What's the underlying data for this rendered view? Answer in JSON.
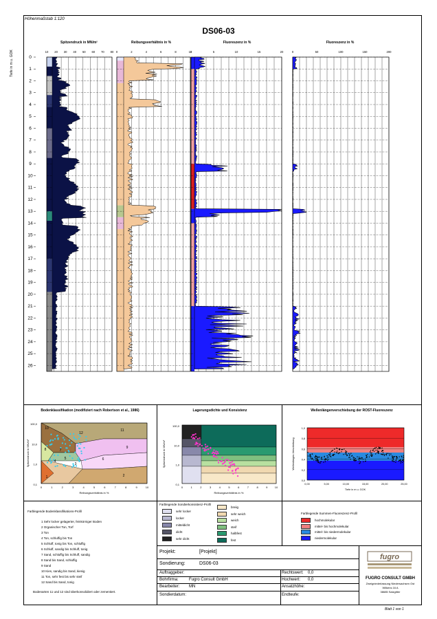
{
  "header": {
    "scale": "Höhenmaßstab 1:120",
    "title": "DS06-03"
  },
  "columns": {
    "tip": {
      "title": "Spitzendruck in MN/m²",
      "ticks": [
        "10",
        "20",
        "30",
        "40",
        "50",
        "60",
        "70",
        "80"
      ]
    },
    "friction": {
      "title": "Reibungsverhältnis in %",
      "ticks": [
        "0",
        "2",
        "4",
        "6",
        "8",
        "10"
      ]
    },
    "fluor1": {
      "title": "Fluoreszenz in %",
      "ticks": [
        "0",
        "5",
        "10",
        "15",
        "20"
      ]
    },
    "fluor2": {
      "title": "Fluoreszenz in %",
      "ticks": [
        "0",
        "50",
        "100",
        "150",
        "200"
      ]
    }
  },
  "depth_axis": {
    "label": "Tiefe in m u. GOK",
    "ticks": [
      "0",
      "1",
      "2",
      "3",
      "4",
      "5",
      "6",
      "7",
      "8",
      "9",
      "10",
      "11",
      "12",
      "13",
      "14",
      "15",
      "16",
      "17",
      "18",
      "19",
      "20",
      "21",
      "22",
      "23",
      "24",
      "25",
      "26"
    ]
  },
  "panels": {
    "robertson": {
      "title": "Bodenklassifikation (modifiziert nach Robertson et al., 1986)",
      "xlabel": "Reibungsverhältnis in %",
      "ylabel": "Spitzendruck in MN/m²",
      "y_ticks": [
        "100,0",
        "10,0",
        "1,0",
        "0,1"
      ],
      "x_ticks": [
        "0",
        "1",
        "2",
        "3",
        "4",
        "5",
        "6",
        "7",
        "8",
        "9",
        "10"
      ],
      "zones": [
        "1",
        "2",
        "3",
        "4",
        "5",
        "6",
        "7",
        "8",
        "9",
        "10",
        "11",
        "12"
      ]
    },
    "lagerung": {
      "title": "Lagerungsdichte und Konsistenz",
      "xlabel": "Reibungsverhältnis in %",
      "ylabel": "Spitzendruck in MN/m²",
      "y_ticks": [
        "100,0",
        "10,0",
        "1,0",
        "0,1"
      ],
      "x_ticks": [
        "0",
        "1",
        "2",
        "3",
        "4",
        "5",
        "6",
        "7",
        "8",
        "9",
        "10"
      ]
    },
    "rost": {
      "title": "Wellenlängenverschiebung der ROST-Fluoreszenz",
      "xlabel": "Tiefe in m u. GOK",
      "ylabel": "Wellenlängen-Verschiebung",
      "x_ticks": [
        "0,00",
        "5,00",
        "10,00",
        "15,00",
        "20,00",
        "25,00"
      ],
      "y_ticks": [
        "1,0",
        "0,8",
        "0,6",
        "0,4",
        "0,2",
        "0,0"
      ]
    }
  },
  "legends": {
    "robertson_title": "Farblegende Bodenklassifikations-Profil",
    "robertson_items": [
      "1  Sehr locker gelagerter, feinkörniger Boden",
      "2  Organischer Ton, Torf",
      "3  Ton",
      "4  Ton, schluffig bis Ton",
      "5  Schluff, tonig bis Ton, schluffig",
      "6  Schluff, sandig bis Schluff, tonig",
      "7  Sand, schluffig bis Schluff, sandig",
      "8  Sand bis Sand, schluffig",
      "9  Sand",
      "10  Kies, sandig bis Sand, kiesig",
      "11  Ton, sehr fest bis sehr steif",
      "12  Sand bis Sand, tonig"
    ],
    "robertson_note": "Bodenarten 11 und 12 sind überkonsolidiert oder zementiert.",
    "lagerung_title": "Farblegende Sondierkonsistenz-Profil",
    "lagerung_left": [
      "sehr locker",
      "locker",
      "mitteldicht",
      "dicht",
      "sehr dicht"
    ],
    "lagerung_right": [
      "breiig",
      "sehr weich",
      "weich",
      "steif",
      "halbfest",
      "fest"
    ],
    "rost_title": "Farblegende Summen-Fluoreszenz-Profil",
    "rost_items": [
      "hochmolekular",
      "mittel- bis hochmolekular",
      "mittel- bis niedermolekular",
      "niedermolekular"
    ]
  },
  "form": {
    "projekt_label": "Projekt:",
    "projekt_value": "[Projekt]",
    "sondierung_label": "Sondierung:",
    "sondierung_value": "DS06-03",
    "auftraggeber_label": "Auftraggeber:",
    "bohrfirma_label": "Bohrfirma:",
    "bohrfirma_value": "Fugro Consult GmbH",
    "bearbeiter_label": "Bearbeiter:",
    "bearbeiter_value": "MN",
    "sondierdatum_label": "Sondierdatum:",
    "rechtswert_label": "Rechtswert:",
    "rechtswert_value": "0,0",
    "hochwert_label": "Hochwert:",
    "hochwert_value": "0,0",
    "ansatzhoehe_label": "Ansatzhöhe:",
    "endteufe_label": "Endteufe:"
  },
  "company": {
    "logo": "fugro",
    "name": "FUGRO CONSULT GMBH",
    "line1": "Zweigniederlassung Niedersachsen Ost",
    "line2": "Wilkens 16 A",
    "line3": "38685 Salzgitter"
  },
  "footer": {
    "page": "Blatt 1 von 1"
  },
  "colors": {
    "profile_dark": "#0b1246",
    "profile_gray": "#8a8a8a",
    "friction_fill": "#f4c89a",
    "fluor_blue": "#1a1aff",
    "fluor_red": "#d92020",
    "magenta": "#ff33cc",
    "cyan": "#33ccee"
  }
}
